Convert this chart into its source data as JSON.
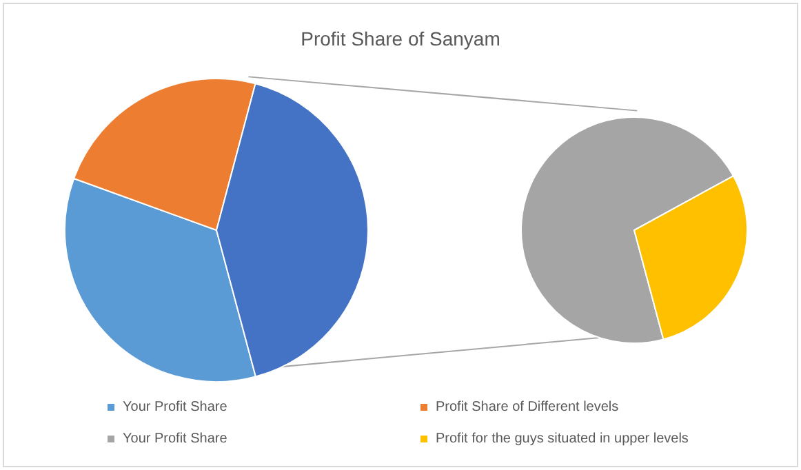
{
  "chart_data": [
    {
      "type": "pie",
      "title": "Profit Share of Sanyam",
      "categories": [
        "Your Profit Share",
        "Profit Share of Different levels",
        null
      ],
      "values": [
        34.7,
        23.6,
        41.7
      ],
      "colors": [
        "#5b9bd5",
        "#ed7d31",
        "#4472c4"
      ],
      "legend": "bottom"
    },
    {
      "type": "pie",
      "categories": [
        "Your Profit Share",
        "Profit for the guys situated in upper levels"
      ],
      "values": [
        71.2,
        28.8
      ],
      "colors": [
        "#a5a5a5",
        "#ffc000"
      ],
      "legend": "bottom"
    }
  ]
}
